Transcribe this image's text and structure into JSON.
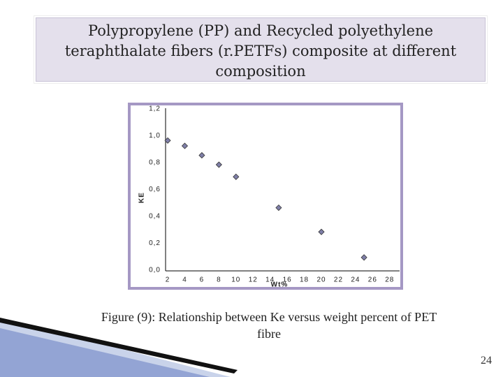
{
  "title": "Polypropylene (PP) and Recycled polyethylene teraphthalate fibers (r.PETFs) composite at different composition",
  "caption": "Figure (9): Relationship between Ke versus weight percent of PET fibre",
  "slide_number": "24",
  "chart_data": {
    "type": "scatter",
    "x_label": "Wt%",
    "y_label": "KE",
    "x": [
      2,
      4,
      6,
      8,
      10,
      15,
      20,
      25
    ],
    "values": [
      0.97,
      0.93,
      0.86,
      0.79,
      0.7,
      0.47,
      0.29,
      0.1
    ],
    "color": "#7f7fa8",
    "xlim": [
      1.75,
      29
    ],
    "ylim": [
      0,
      1.2
    ],
    "xticks": [
      2,
      4,
      6,
      8,
      10,
      12,
      14,
      16,
      18,
      20,
      22,
      24,
      26,
      28
    ],
    "yticks": [
      {
        "value": 0,
        "label": "0,0"
      },
      {
        "value": 0.2,
        "label": "0,2"
      },
      {
        "value": 0.4,
        "label": "0,4"
      },
      {
        "value": 0.6,
        "label": "0,6"
      },
      {
        "value": 0.8,
        "label": "0,8"
      },
      {
        "value": 1.0,
        "label": "1,0"
      },
      {
        "value": 1.2,
        "label": "1,2"
      }
    ],
    "grid": false
  }
}
